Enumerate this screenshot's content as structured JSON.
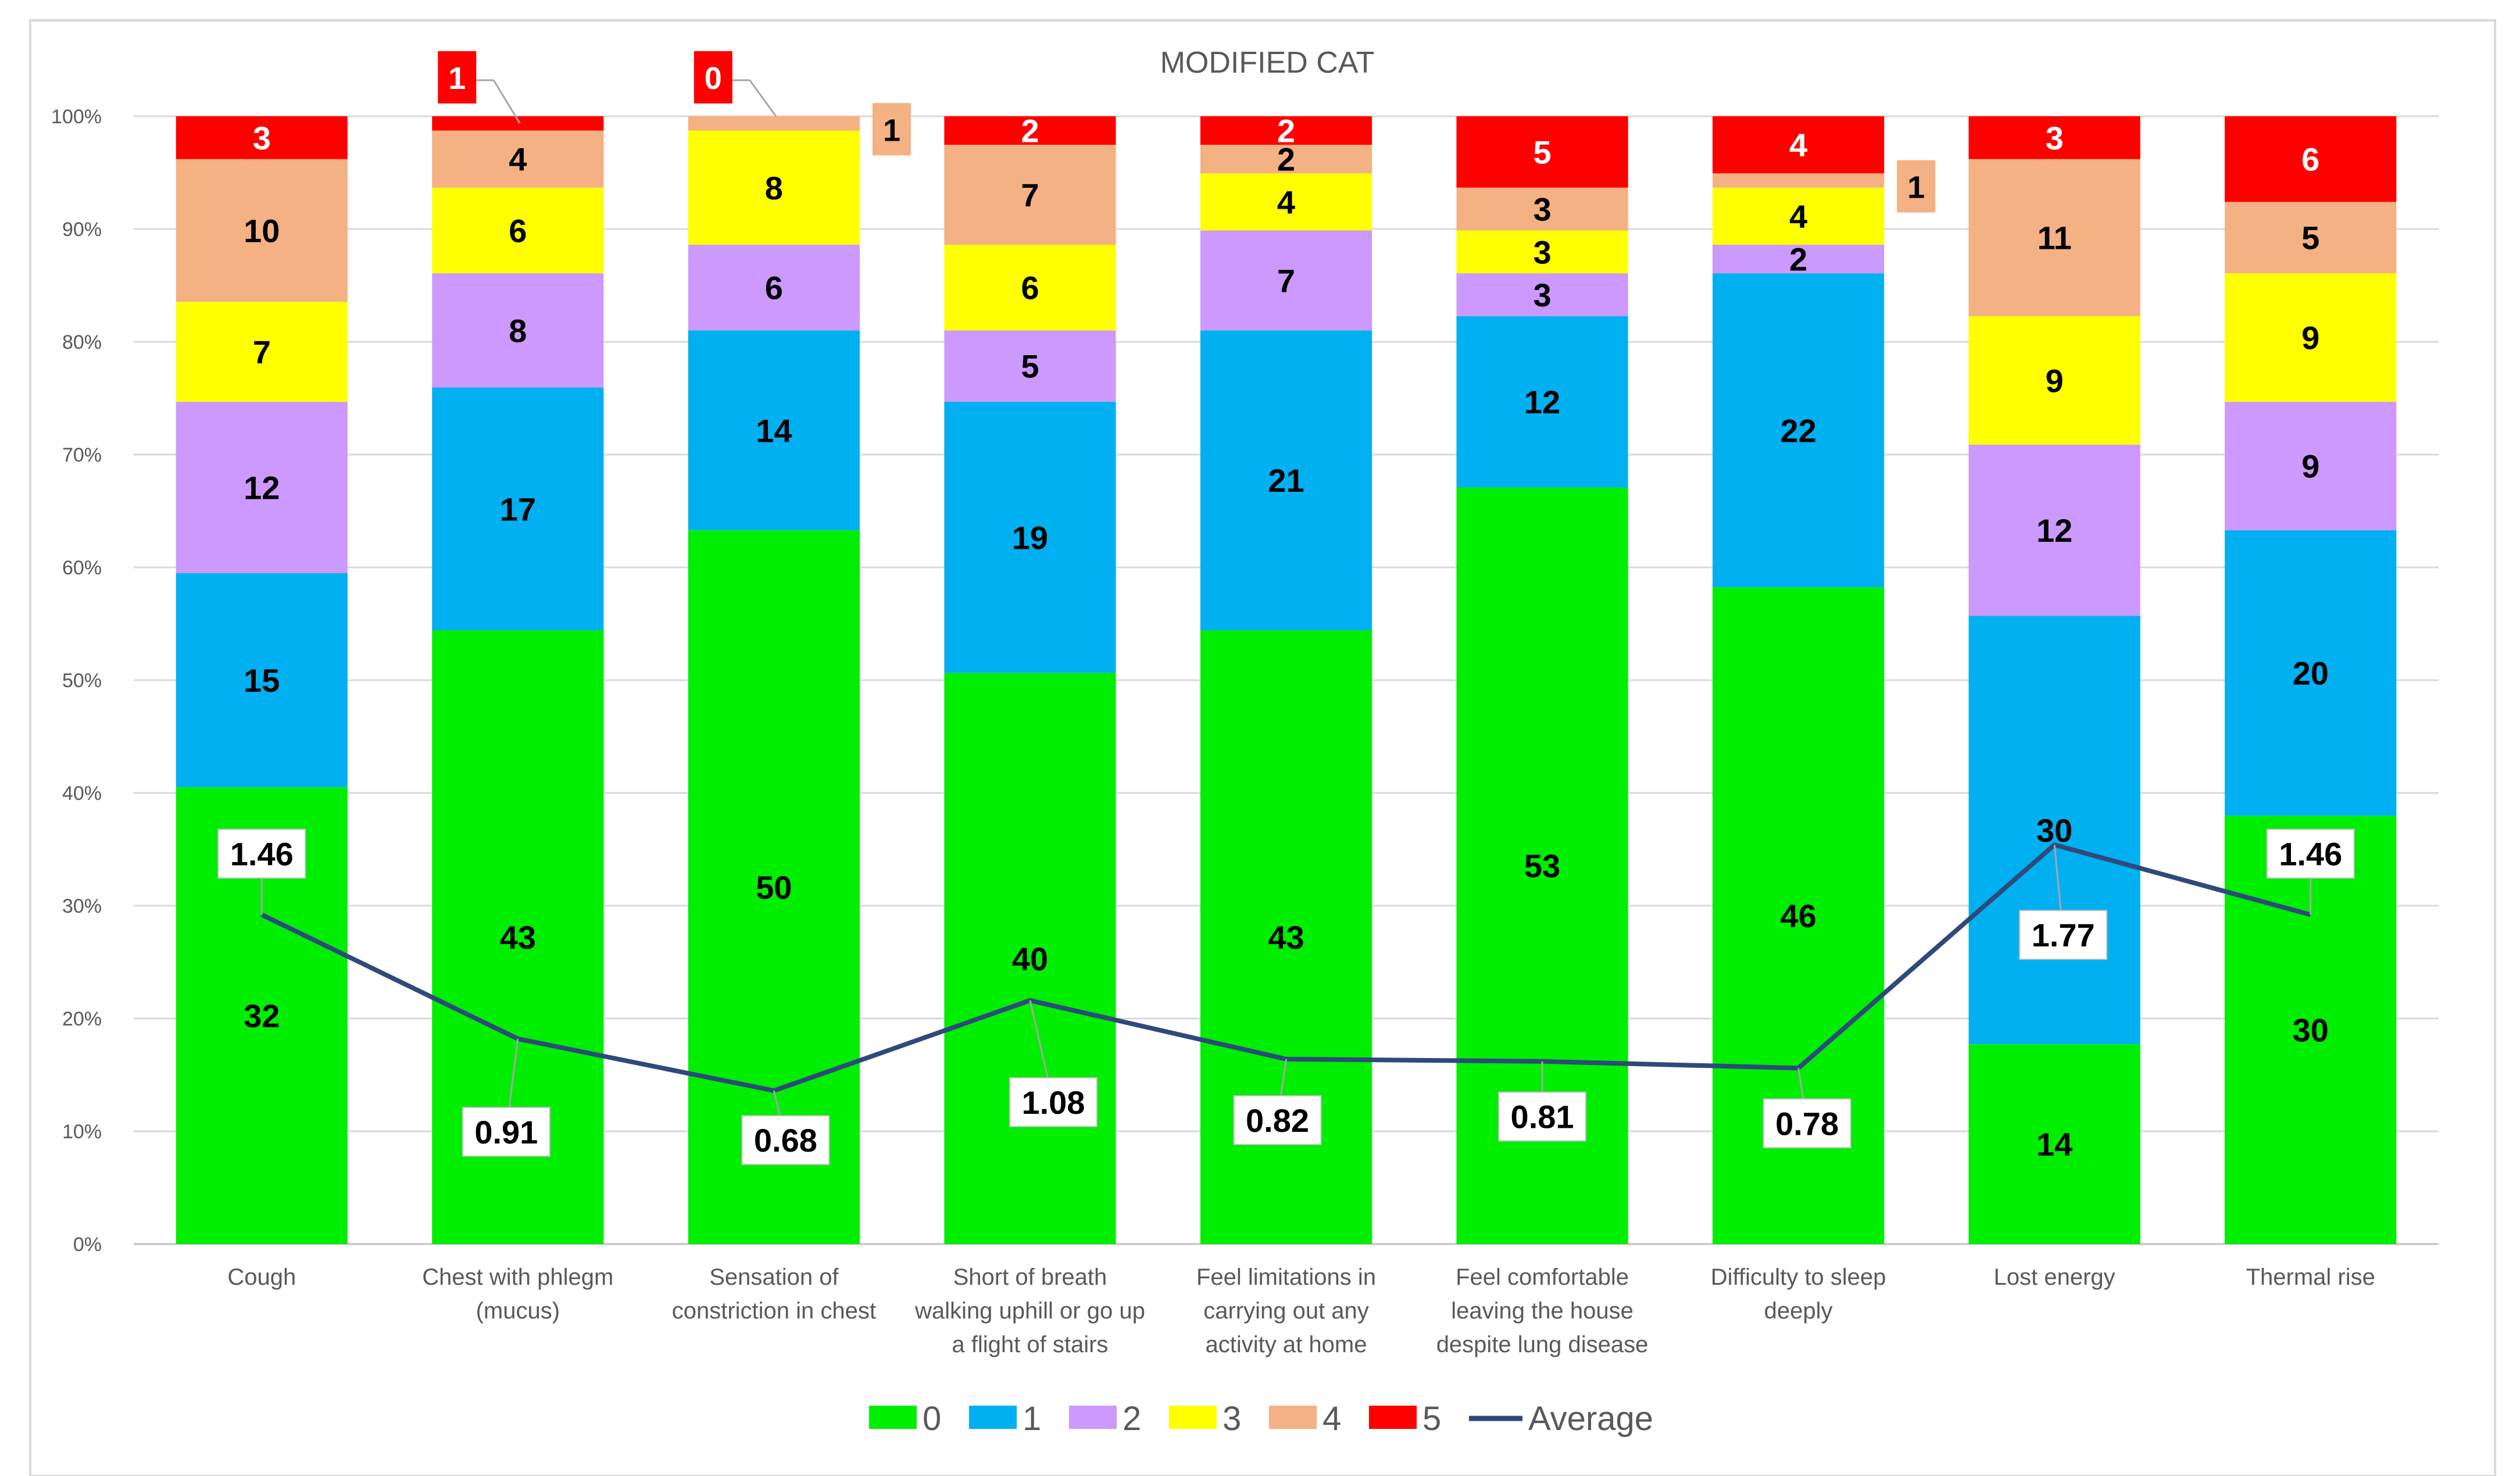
{
  "chart_data": {
    "type": "bar",
    "stacked": "percent",
    "title": "MODIFIED CAT",
    "categories": [
      "Cough",
      "Chest with phlegm (mucus)",
      "Sensation of constriction in chest",
      "Short of breath walking uphill or go up a flight of stairs",
      "Feel limitations in carrying out any activity at home",
      "Feel comfortable leaving the house despite lung disease",
      "Difficulty to sleep deeply",
      "Lost energy",
      "Thermal rise"
    ],
    "category_lines": [
      [
        "Cough"
      ],
      [
        "Chest with phlegm",
        "(mucus)"
      ],
      [
        "Sensation of",
        "constriction in chest"
      ],
      [
        "Short of breath",
        "walking uphill or go up",
        "a flight of stairs"
      ],
      [
        "Feel limitations in",
        "carrying out any",
        "activity at home"
      ],
      [
        "Feel comfortable",
        "leaving the house",
        "despite lung disease"
      ],
      [
        "Difficulty to sleep",
        "deeply"
      ],
      [
        "Lost energy"
      ],
      [
        "Thermal rise"
      ]
    ],
    "series": [
      {
        "name": "0",
        "color": "#00ee00",
        "values": [
          32,
          43,
          50,
          40,
          43,
          53,
          46,
          14,
          30
        ]
      },
      {
        "name": "1",
        "color": "#00b0f0",
        "values": [
          15,
          17,
          14,
          19,
          21,
          12,
          22,
          30,
          20
        ]
      },
      {
        "name": "2",
        "color": "#cc99ff",
        "values": [
          12,
          8,
          6,
          5,
          7,
          3,
          2,
          12,
          9
        ]
      },
      {
        "name": "3",
        "color": "#ffff00",
        "values": [
          7,
          6,
          8,
          6,
          4,
          3,
          4,
          9,
          9
        ]
      },
      {
        "name": "4",
        "color": "#f4b183",
        "values": [
          10,
          4,
          1,
          7,
          2,
          3,
          1,
          11,
          5
        ]
      },
      {
        "name": "5",
        "color": "#ff0000",
        "values": [
          3,
          1,
          0,
          2,
          2,
          5,
          4,
          3,
          6
        ]
      }
    ],
    "line_series": {
      "name": "Average",
      "color": "#2f4a7a",
      "values": [
        1.46,
        0.91,
        0.68,
        1.08,
        0.82,
        0.81,
        0.78,
        1.77,
        1.46
      ],
      "scale_max": 5
    },
    "y_axis": {
      "ticks": [
        "0%",
        "10%",
        "20%",
        "30%",
        "40%",
        "50%",
        "60%",
        "70%",
        "80%",
        "90%",
        "100%"
      ],
      "ylim": [
        0,
        100
      ]
    },
    "grid": true,
    "legend": {
      "position": "bottom",
      "entries": [
        "0",
        "1",
        "2",
        "3",
        "4",
        "5",
        "Average"
      ]
    }
  }
}
